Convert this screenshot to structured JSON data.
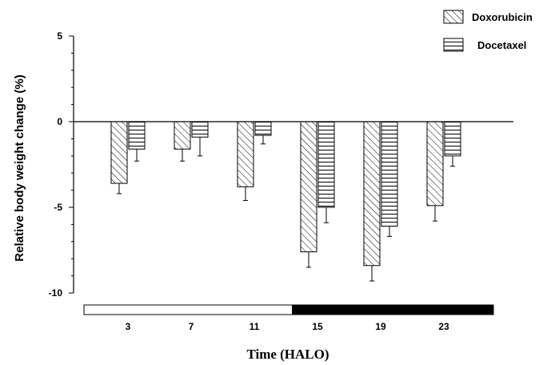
{
  "chart_data": {
    "type": "bar",
    "title": "",
    "xlabel": "Time (HALO)",
    "ylabel": "Relative body weight change (%)",
    "ylim": [
      -10,
      5
    ],
    "yticks": [
      5,
      0,
      -5,
      -10
    ],
    "categories": [
      "3",
      "7",
      "11",
      "15",
      "19",
      "23"
    ],
    "series": [
      {
        "name": "Doxorubicin",
        "pattern": "diagonal-hatch",
        "values": [
          -3.6,
          -1.6,
          -3.8,
          -7.6,
          -8.4,
          -4.9
        ],
        "errors": [
          0.6,
          0.7,
          0.8,
          0.9,
          0.9,
          0.9
        ]
      },
      {
        "name": "Docetaxel",
        "pattern": "horizontal-hatch",
        "values": [
          -1.6,
          -0.9,
          -0.8,
          -5.0,
          -6.1,
          -2.0
        ],
        "errors": [
          0.7,
          1.1,
          0.5,
          0.9,
          0.6,
          0.6
        ]
      }
    ],
    "legend_position": "top-right",
    "grid": false,
    "light_dark_bar": {
      "light_until_between": [
        "11",
        "15"
      ]
    }
  },
  "colors": {
    "ink": "#000000",
    "background": "#ffffff",
    "light_phase": "#ffffff",
    "dark_phase": "#000000"
  }
}
